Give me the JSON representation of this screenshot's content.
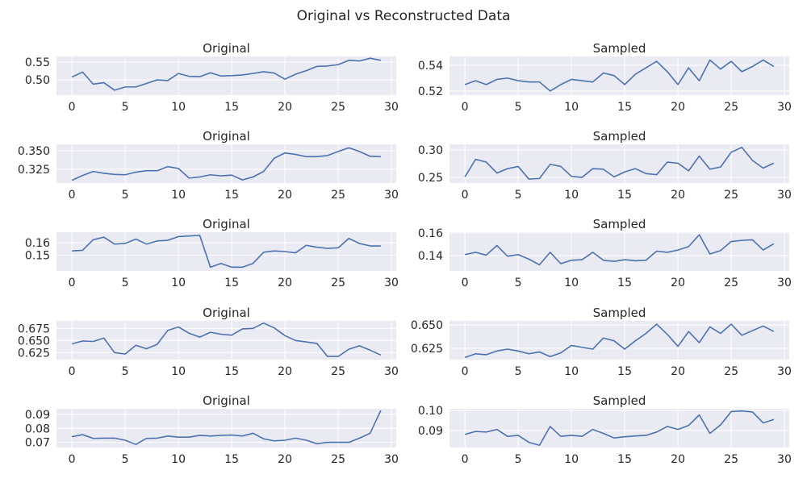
{
  "title": "Original vs Reconstructed Data",
  "chart_data": [
    {
      "type": "line",
      "title": "Original",
      "xlabel": "",
      "ylabel": "",
      "x": [
        0,
        1,
        2,
        3,
        4,
        5,
        6,
        7,
        8,
        9,
        10,
        11,
        12,
        13,
        14,
        15,
        16,
        17,
        18,
        19,
        20,
        21,
        22,
        23,
        24,
        25,
        26,
        27,
        28,
        29
      ],
      "values": [
        0.508,
        0.522,
        0.488,
        0.492,
        0.471,
        0.48,
        0.48,
        0.49,
        0.5,
        0.498,
        0.518,
        0.51,
        0.509,
        0.52,
        0.511,
        0.512,
        0.514,
        0.518,
        0.523,
        0.519,
        0.502,
        0.516,
        0.526,
        0.538,
        0.539,
        0.543,
        0.555,
        0.553,
        0.561,
        0.555
      ],
      "xlim": [
        -1.45,
        30.45
      ],
      "ylim": [
        0.457,
        0.566
      ],
      "xticks": [
        0,
        5,
        10,
        15,
        20,
        25,
        30
      ],
      "xtick_labels": [
        "0",
        "5",
        "10",
        "15",
        "20",
        "25",
        "30"
      ],
      "yticks": [
        0.5,
        0.55
      ],
      "ytick_labels": [
        "0.50",
        "0.55"
      ],
      "grid": true
    },
    {
      "type": "line",
      "title": "Sampled",
      "xlabel": "",
      "ylabel": "",
      "x": [
        0,
        1,
        2,
        3,
        4,
        5,
        6,
        7,
        8,
        9,
        10,
        11,
        12,
        13,
        14,
        15,
        16,
        17,
        18,
        19,
        20,
        21,
        22,
        23,
        24,
        25,
        26,
        27,
        28,
        29
      ],
      "values": [
        0.525,
        0.528,
        0.525,
        0.529,
        0.53,
        0.528,
        0.527,
        0.527,
        0.52,
        0.525,
        0.529,
        0.528,
        0.527,
        0.534,
        0.532,
        0.525,
        0.533,
        0.538,
        0.543,
        0.535,
        0.525,
        0.538,
        0.528,
        0.544,
        0.537,
        0.543,
        0.535,
        0.539,
        0.544,
        0.539
      ],
      "xlim": [
        -1.45,
        30.45
      ],
      "ylim": [
        0.5168,
        0.5468
      ],
      "xticks": [
        0,
        5,
        10,
        15,
        20,
        25,
        30
      ],
      "xtick_labels": [
        "0",
        "5",
        "10",
        "15",
        "20",
        "25",
        "30"
      ],
      "yticks": [
        0.52,
        0.54
      ],
      "ytick_labels": [
        "0.52",
        "0.54"
      ],
      "grid": true
    },
    {
      "type": "line",
      "title": "Original",
      "xlabel": "",
      "ylabel": "",
      "x": [
        0,
        1,
        2,
        3,
        4,
        5,
        6,
        7,
        8,
        9,
        10,
        11,
        12,
        13,
        14,
        15,
        16,
        17,
        18,
        19,
        20,
        21,
        22,
        23,
        24,
        25,
        26,
        27,
        28,
        29
      ],
      "values": [
        0.31,
        0.3165,
        0.322,
        0.3195,
        0.318,
        0.3175,
        0.321,
        0.323,
        0.323,
        0.3285,
        0.326,
        0.313,
        0.3145,
        0.3175,
        0.316,
        0.317,
        0.3105,
        0.3145,
        0.322,
        0.34,
        0.347,
        0.345,
        0.342,
        0.342,
        0.3435,
        0.349,
        0.354,
        0.349,
        0.3425,
        0.342
      ],
      "xlim": [
        -1.45,
        30.45
      ],
      "ylim": [
        0.3063,
        0.3587
      ],
      "xticks": [
        0,
        5,
        10,
        15,
        20,
        25,
        30
      ],
      "xtick_labels": [
        "0",
        "5",
        "10",
        "15",
        "20",
        "25",
        "30"
      ],
      "yticks": [
        0.325,
        0.35
      ],
      "ytick_labels": [
        "0.325",
        "0.350"
      ],
      "grid": true
    },
    {
      "type": "line",
      "title": "Sampled",
      "xlabel": "",
      "ylabel": "",
      "x": [
        0,
        1,
        2,
        3,
        4,
        5,
        6,
        7,
        8,
        9,
        10,
        11,
        12,
        13,
        14,
        15,
        16,
        17,
        18,
        19,
        20,
        21,
        22,
        23,
        24,
        25,
        26,
        27,
        28,
        29
      ],
      "values": [
        0.251,
        0.283,
        0.278,
        0.258,
        0.266,
        0.27,
        0.247,
        0.248,
        0.274,
        0.27,
        0.252,
        0.25,
        0.266,
        0.265,
        0.251,
        0.26,
        0.266,
        0.257,
        0.255,
        0.278,
        0.276,
        0.262,
        0.289,
        0.265,
        0.269,
        0.296,
        0.305,
        0.281,
        0.267,
        0.276
      ],
      "xlim": [
        -1.45,
        30.45
      ],
      "ylim": [
        0.2397,
        0.3105
      ],
      "xticks": [
        0,
        5,
        10,
        15,
        20,
        25,
        30
      ],
      "xtick_labels": [
        "0",
        "5",
        "10",
        "15",
        "20",
        "25",
        "30"
      ],
      "yticks": [
        0.25,
        0.3
      ],
      "ytick_labels": [
        "0.25",
        "0.30"
      ],
      "grid": true
    },
    {
      "type": "line",
      "title": "Original",
      "xlabel": "",
      "ylabel": "",
      "x": [
        0,
        1,
        2,
        3,
        4,
        5,
        6,
        7,
        8,
        9,
        10,
        11,
        12,
        13,
        14,
        15,
        16,
        17,
        18,
        19,
        20,
        21,
        22,
        23,
        24,
        25,
        26,
        27,
        28,
        29
      ],
      "values": [
        0.1535,
        0.154,
        0.1625,
        0.1645,
        0.159,
        0.1595,
        0.163,
        0.159,
        0.1615,
        0.162,
        0.165,
        0.1655,
        0.166,
        0.1405,
        0.1435,
        0.1405,
        0.1405,
        0.1435,
        0.1525,
        0.1535,
        0.153,
        0.152,
        0.158,
        0.1565,
        0.1555,
        0.156,
        0.1635,
        0.1595,
        0.1575,
        0.1575
      ],
      "xlim": [
        -1.45,
        30.45
      ],
      "ylim": [
        0.1375,
        0.1685
      ],
      "xticks": [
        0,
        5,
        10,
        15,
        20,
        25,
        30
      ],
      "xtick_labels": [
        "0",
        "5",
        "10",
        "15",
        "20",
        "25",
        "30"
      ],
      "yticks": [
        0.15,
        0.16
      ],
      "ytick_labels": [
        "0.15",
        "0.16"
      ],
      "grid": true
    },
    {
      "type": "line",
      "title": "Sampled",
      "xlabel": "",
      "ylabel": "",
      "x": [
        0,
        1,
        2,
        3,
        4,
        5,
        6,
        7,
        8,
        9,
        10,
        11,
        12,
        13,
        14,
        15,
        16,
        17,
        18,
        19,
        20,
        21,
        22,
        23,
        24,
        25,
        26,
        27,
        28,
        29
      ],
      "values": [
        0.141,
        0.143,
        0.1405,
        0.149,
        0.1395,
        0.141,
        0.137,
        0.132,
        0.143,
        0.133,
        0.136,
        0.1365,
        0.143,
        0.136,
        0.135,
        0.1365,
        0.1355,
        0.136,
        0.144,
        0.143,
        0.145,
        0.148,
        0.1585,
        0.1415,
        0.1445,
        0.1525,
        0.1535,
        0.154,
        0.145,
        0.1505
      ],
      "xlim": [
        -1.45,
        30.45
      ],
      "ylim": [
        0.1266,
        0.1607
      ],
      "xticks": [
        0,
        5,
        10,
        15,
        20,
        25,
        30
      ],
      "xtick_labels": [
        "0",
        "5",
        "10",
        "15",
        "20",
        "25",
        "30"
      ],
      "yticks": [
        0.14,
        0.16
      ],
      "ytick_labels": [
        "0.14",
        "0.16"
      ],
      "grid": true
    },
    {
      "type": "line",
      "title": "Original",
      "xlabel": "",
      "ylabel": "",
      "x": [
        0,
        1,
        2,
        3,
        4,
        5,
        6,
        7,
        8,
        9,
        10,
        11,
        12,
        13,
        14,
        15,
        16,
        17,
        18,
        19,
        20,
        21,
        22,
        23,
        24,
        25,
        26,
        27,
        28,
        29
      ],
      "values": [
        0.643,
        0.649,
        0.648,
        0.655,
        0.625,
        0.622,
        0.64,
        0.633,
        0.642,
        0.671,
        0.678,
        0.665,
        0.657,
        0.667,
        0.663,
        0.661,
        0.674,
        0.675,
        0.686,
        0.676,
        0.66,
        0.65,
        0.647,
        0.644,
        0.617,
        0.617,
        0.632,
        0.639,
        0.63,
        0.62
      ],
      "xlim": [
        -1.45,
        30.45
      ],
      "ylim": [
        0.6105,
        0.6905
      ],
      "xticks": [
        0,
        5,
        10,
        15,
        20,
        25,
        30
      ],
      "xtick_labels": [
        "0",
        "5",
        "10",
        "15",
        "20",
        "25",
        "30"
      ],
      "yticks": [
        0.625,
        0.65,
        0.675
      ],
      "ytick_labels": [
        "0.625",
        "0.650",
        "0.675"
      ],
      "grid": true
    },
    {
      "type": "line",
      "title": "Sampled",
      "xlabel": "",
      "ylabel": "",
      "x": [
        0,
        1,
        2,
        3,
        4,
        5,
        6,
        7,
        8,
        9,
        10,
        11,
        12,
        13,
        14,
        15,
        16,
        17,
        18,
        19,
        20,
        21,
        22,
        23,
        24,
        25,
        26,
        27,
        28,
        29
      ],
      "values": [
        0.615,
        0.619,
        0.618,
        0.622,
        0.624,
        0.622,
        0.619,
        0.621,
        0.616,
        0.62,
        0.628,
        0.626,
        0.624,
        0.636,
        0.633,
        0.624,
        0.633,
        0.641,
        0.651,
        0.64,
        0.627,
        0.643,
        0.631,
        0.648,
        0.641,
        0.651,
        0.639,
        0.644,
        0.649,
        0.643
      ],
      "xlim": [
        -1.45,
        30.45
      ],
      "ylim": [
        0.6127,
        0.6545
      ],
      "xticks": [
        0,
        5,
        10,
        15,
        20,
        25,
        30
      ],
      "xtick_labels": [
        "0",
        "5",
        "10",
        "15",
        "20",
        "25",
        "30"
      ],
      "yticks": [
        0.625,
        0.65
      ],
      "ytick_labels": [
        "0.625",
        "0.650"
      ],
      "grid": true
    },
    {
      "type": "line",
      "title": "Original",
      "xlabel": "",
      "ylabel": "",
      "x": [
        0,
        1,
        2,
        3,
        4,
        5,
        6,
        7,
        8,
        9,
        10,
        11,
        12,
        13,
        14,
        15,
        16,
        17,
        18,
        19,
        20,
        21,
        22,
        23,
        24,
        25,
        26,
        27,
        28,
        29
      ],
      "values": [
        0.074,
        0.0755,
        0.0728,
        0.073,
        0.073,
        0.0715,
        0.0685,
        0.0728,
        0.073,
        0.0745,
        0.0737,
        0.0737,
        0.075,
        0.0745,
        0.075,
        0.0752,
        0.0745,
        0.0765,
        0.0725,
        0.071,
        0.0715,
        0.073,
        0.0715,
        0.069,
        0.07,
        0.07,
        0.07,
        0.073,
        0.0765,
        0.0928
      ],
      "xlim": [
        -1.45,
        30.45
      ],
      "ylim": [
        0.0663,
        0.094
      ],
      "xticks": [
        0,
        5,
        10,
        15,
        20,
        25,
        30
      ],
      "xtick_labels": [
        "0",
        "5",
        "10",
        "15",
        "20",
        "25",
        "30"
      ],
      "yticks": [
        0.07,
        0.08,
        0.09
      ],
      "ytick_labels": [
        "0.07",
        "0.08",
        "0.09"
      ],
      "grid": true
    },
    {
      "type": "line",
      "title": "Sampled",
      "xlabel": "",
      "ylabel": "",
      "x": [
        0,
        1,
        2,
        3,
        4,
        5,
        6,
        7,
        8,
        9,
        10,
        11,
        12,
        13,
        14,
        15,
        16,
        17,
        18,
        19,
        20,
        21,
        22,
        23,
        24,
        25,
        26,
        27,
        28,
        29
      ],
      "values": [
        0.088,
        0.0895,
        0.0892,
        0.0905,
        0.087,
        0.0875,
        0.084,
        0.0825,
        0.092,
        0.087,
        0.0875,
        0.087,
        0.0905,
        0.0885,
        0.0862,
        0.0868,
        0.0872,
        0.0875,
        0.0892,
        0.092,
        0.0905,
        0.0925,
        0.0978,
        0.0885,
        0.0928,
        0.0995,
        0.0998,
        0.0993,
        0.0938,
        0.0955
      ],
      "xlim": [
        -1.45,
        30.45
      ],
      "ylim": [
        0.0814,
        0.1009
      ],
      "xticks": [
        0,
        5,
        10,
        15,
        20,
        25,
        30
      ],
      "xtick_labels": [
        "0",
        "5",
        "10",
        "15",
        "20",
        "25",
        "30"
      ],
      "yticks": [
        0.09,
        0.1
      ],
      "ytick_labels": [
        "0.09",
        "0.10"
      ],
      "grid": true
    }
  ]
}
